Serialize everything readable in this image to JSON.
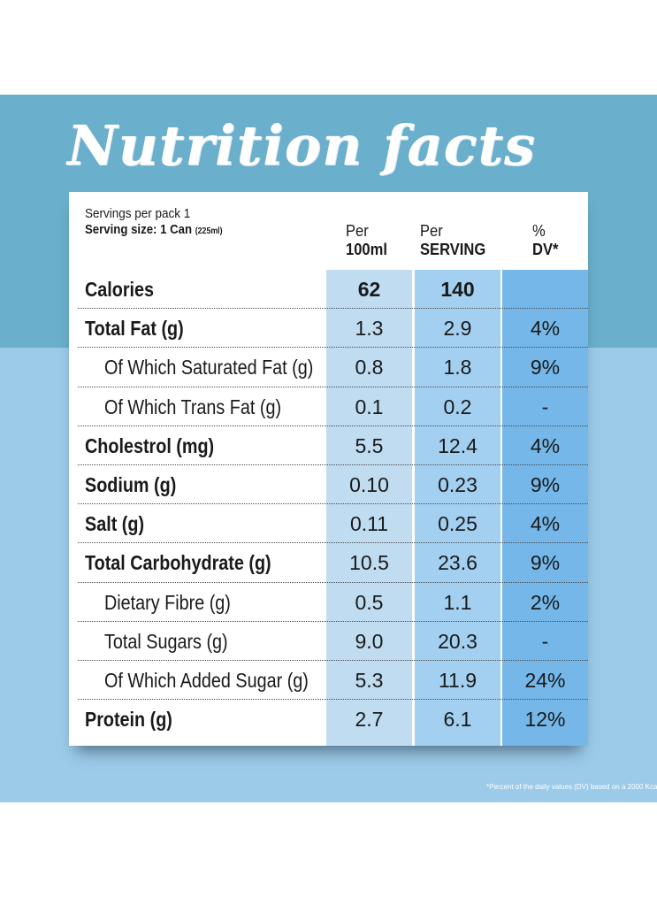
{
  "title": "Nutrition facts",
  "servings_per_pack": "Servings per pack 1",
  "serving_size": "Serving size: 1 Can",
  "serving_size_ml": "(225ml)",
  "columns": {
    "per100_line1": "Per",
    "per100_line2": "100ml",
    "serving_line1": "Per",
    "serving_line2": "SERVING",
    "dv_line1": "%",
    "dv_line2": "DV*"
  },
  "rows": [
    {
      "label": "Calories",
      "per100": "62",
      "per_serving": "140",
      "dv": ""
    },
    {
      "label": "Total Fat (g)",
      "per100": "1.3",
      "per_serving": "2.9",
      "dv": "4%"
    },
    {
      "label": "Of Which Saturated Fat (g)",
      "per100": "0.8",
      "per_serving": "1.8",
      "dv": "9%"
    },
    {
      "label": "Of Which Trans Fat (g)",
      "per100": "0.1",
      "per_serving": "0.2",
      "dv": "-"
    },
    {
      "label": "Cholestrol (mg)",
      "per100": "5.5",
      "per_serving": "12.4",
      "dv": "4%"
    },
    {
      "label": "Sodium (g)",
      "per100": "0.10",
      "per_serving": "0.23",
      "dv": "9%"
    },
    {
      "label": "Salt (g)",
      "per100": "0.11",
      "per_serving": "0.25",
      "dv": "4%"
    },
    {
      "label": "Total Carbohydrate (g)",
      "per100": "10.5",
      "per_serving": "23.6",
      "dv": "9%"
    },
    {
      "label": "Dietary Fibre (g)",
      "per100": "0.5",
      "per_serving": "1.1",
      "dv": "2%"
    },
    {
      "label": "Total Sugars (g)",
      "per100": "9.0",
      "per_serving": "20.3",
      "dv": "-"
    },
    {
      "label": "Of Which Added Sugar (g)",
      "per100": "5.3",
      "per_serving": "11.9",
      "dv": "24%"
    },
    {
      "label": "Protein (g)",
      "per100": "2.7",
      "per_serving": "6.1",
      "dv": "12%"
    }
  ],
  "footnote": "*Percent of the daily values (DV) based on a 2000 Kcal",
  "colors": {
    "top_band": "#6aafcb",
    "bottom_band": "#9bcbe9",
    "col_per100": "#bfdcf1",
    "col_serving": "#a3d0f0",
    "col_dv": "#74b7e8"
  }
}
